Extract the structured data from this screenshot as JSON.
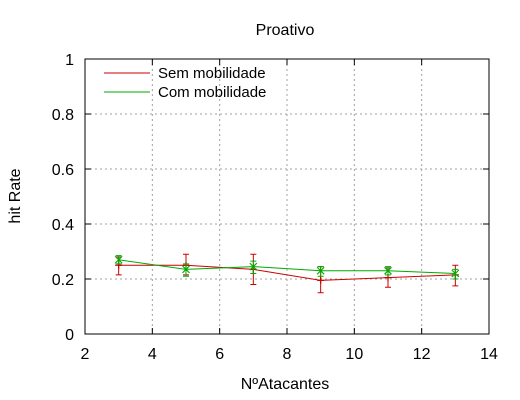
{
  "chart_data": {
    "type": "line",
    "title": "Proativo",
    "xlabel": "NºAtacantes",
    "ylabel": "hit Rate",
    "xlim": [
      2,
      14
    ],
    "ylim": [
      0,
      1
    ],
    "xticks": [
      2,
      4,
      6,
      8,
      10,
      12,
      14
    ],
    "yticks": [
      0,
      0.2,
      0.4,
      0.6,
      0.8,
      1
    ],
    "xtick_labels": [
      "2",
      "4",
      "6",
      "8",
      "10",
      "12",
      "14"
    ],
    "ytick_labels": [
      "0",
      "0.2",
      "0.4",
      "0.6",
      "0.8",
      "1"
    ],
    "grid": true,
    "legend_position": "top-left",
    "series": [
      {
        "name": "Sem mobilidade",
        "color": "#cc0000",
        "marker": "plus",
        "x": [
          3,
          5,
          7,
          9,
          11,
          13
        ],
        "y": [
          0.25,
          0.25,
          0.235,
          0.195,
          0.205,
          0.215
        ],
        "err_low": [
          0.215,
          0.215,
          0.18,
          0.15,
          0.17,
          0.175
        ],
        "err_high": [
          0.28,
          0.29,
          0.29,
          0.245,
          0.24,
          0.25
        ]
      },
      {
        "name": "Com mobilidade",
        "color": "#00aa00",
        "marker": "x",
        "x": [
          3,
          5,
          7,
          9,
          11,
          13
        ],
        "y": [
          0.27,
          0.235,
          0.245,
          0.23,
          0.23,
          0.22
        ],
        "err_low": [
          0.255,
          0.21,
          0.22,
          0.21,
          0.215,
          0.2
        ],
        "err_high": [
          0.285,
          0.255,
          0.265,
          0.245,
          0.245,
          0.235
        ]
      }
    ]
  }
}
